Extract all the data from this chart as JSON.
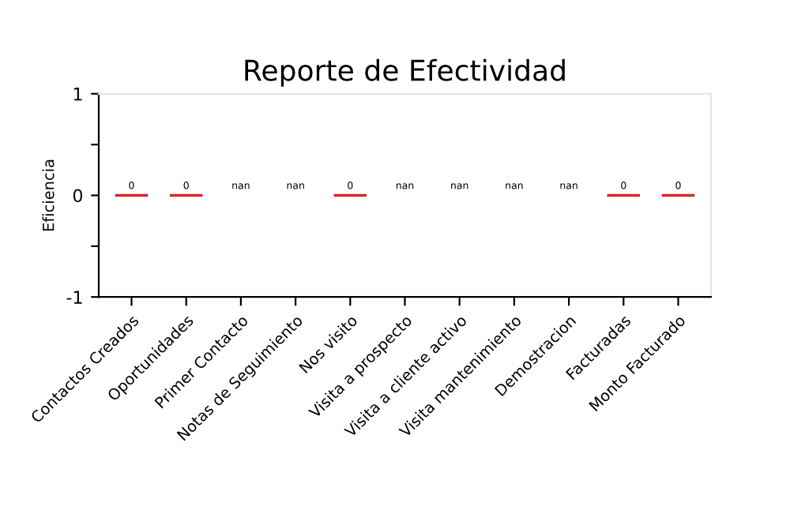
{
  "chart_data": {
    "type": "bar",
    "title": "Reporte de Efectividad",
    "ylabel": "Eficiencia",
    "categories": [
      "Contactos Creados",
      "Oportunidades",
      "Primer Contacto",
      "Notas de Seguimiento",
      "Nos visito",
      "Visita a prospecto",
      "Visita a cliente activo",
      "Visita mantenimiento",
      "Demostracion",
      "Facturadas",
      "Monto Facturado"
    ],
    "values": [
      0,
      0,
      null,
      null,
      0,
      null,
      null,
      null,
      null,
      0,
      0
    ],
    "value_labels": [
      "0",
      "0",
      "nan",
      "nan",
      "0",
      "nan",
      "nan",
      "nan",
      "nan",
      "0",
      "0"
    ],
    "color": "#d62728",
    "ylim": [
      -1,
      1
    ],
    "yticks": [
      -1,
      {
        "value": -0.5,
        "label": null
      },
      0,
      {
        "value": 0.5,
        "label": null
      },
      1
    ],
    "grid": false
  }
}
